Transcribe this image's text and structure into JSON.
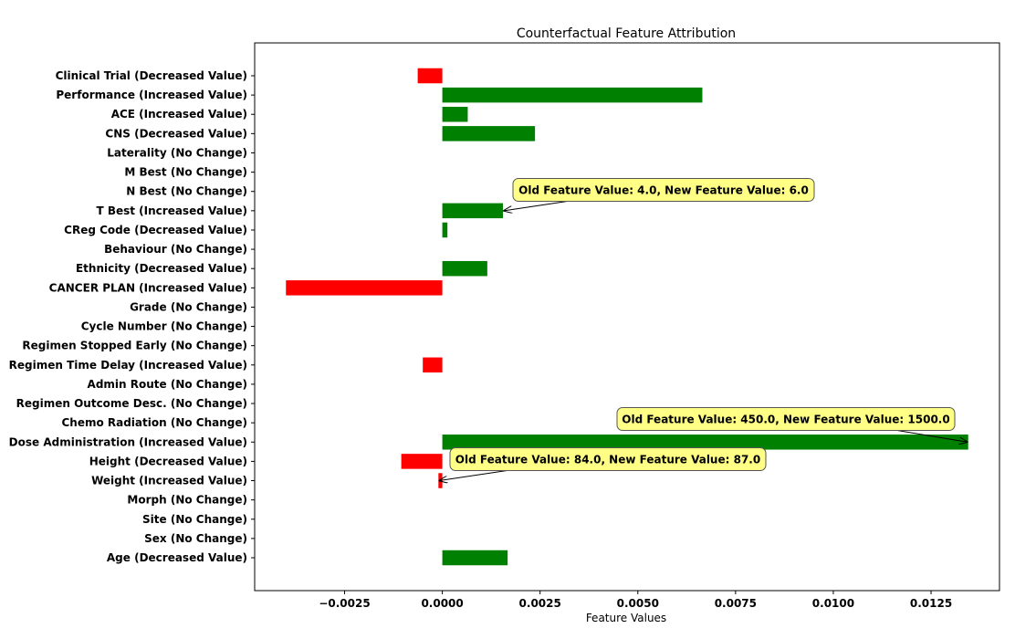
{
  "chart_data": {
    "type": "bar",
    "orientation": "horizontal",
    "title": "Counterfactual Feature Attribution",
    "xlabel": "Feature Values",
    "ylabel": "",
    "xlim": [
      -0.0048,
      0.01425
    ],
    "xticks": [
      -0.0025,
      0.0,
      0.0025,
      0.005,
      0.0075,
      0.01,
      0.0125
    ],
    "xtick_labels": [
      "−0.0025",
      "0.0000",
      "0.0025",
      "0.0050",
      "0.0075",
      "0.0100",
      "0.0125"
    ],
    "grid": false,
    "colors": {
      "positive": "#008000",
      "negative": "#ff0000"
    },
    "bars": [
      {
        "label": "Clinical Trial (Decreased Value)",
        "value": -0.00063
      },
      {
        "label": "Performance (Increased Value)",
        "value": 0.00665
      },
      {
        "label": "ACE (Increased Value)",
        "value": 0.00065
      },
      {
        "label": "CNS (Decreased Value)",
        "value": 0.00237
      },
      {
        "label": "Laterality (No Change)",
        "value": 0.0
      },
      {
        "label": "M Best (No Change)",
        "value": 0.0
      },
      {
        "label": "N Best (No Change)",
        "value": 0.0
      },
      {
        "label": "T Best (Increased Value)",
        "value": 0.00155
      },
      {
        "label": "CReg Code (Decreased Value)",
        "value": 0.00013
      },
      {
        "label": "Behaviour (No Change)",
        "value": 0.0
      },
      {
        "label": "Ethnicity (Decreased Value)",
        "value": 0.00115
      },
      {
        "label": "CANCER PLAN (Increased Value)",
        "value": -0.004
      },
      {
        "label": "Grade (No Change)",
        "value": 0.0
      },
      {
        "label": "Cycle Number (No Change)",
        "value": 0.0
      },
      {
        "label": "Regimen Stopped Early (No Change)",
        "value": 0.0
      },
      {
        "label": "Regimen Time Delay (Increased Value)",
        "value": -0.0005
      },
      {
        "label": "Admin Route (No Change)",
        "value": 0.0
      },
      {
        "label": "Regimen Outcome Desc. (No Change)",
        "value": 0.0
      },
      {
        "label": "Chemo Radiation (No Change)",
        "value": 0.0
      },
      {
        "label": "Dose Administration (Increased Value)",
        "value": 0.01345
      },
      {
        "label": "Height (Decreased Value)",
        "value": -0.00105
      },
      {
        "label": "Weight (Increased Value)",
        "value": -0.0001
      },
      {
        "label": "Morph (No Change)",
        "value": 0.0
      },
      {
        "label": "Site (No Change)",
        "value": 0.0
      },
      {
        "label": "Sex (No Change)",
        "value": 0.0
      },
      {
        "label": "Age (Decreased Value)",
        "value": 0.00167
      }
    ],
    "annotations": [
      {
        "bar": "T Best (Increased Value)",
        "text": "Old Feature Value: 4.0, New Feature Value: 6.0"
      },
      {
        "bar": "Dose Administration (Increased Value)",
        "text": "Old Feature Value: 450.0, New Feature Value: 1500.0"
      },
      {
        "bar": "Weight (Increased Value)",
        "text": "Old Feature Value: 84.0, New Feature Value: 87.0"
      }
    ]
  }
}
